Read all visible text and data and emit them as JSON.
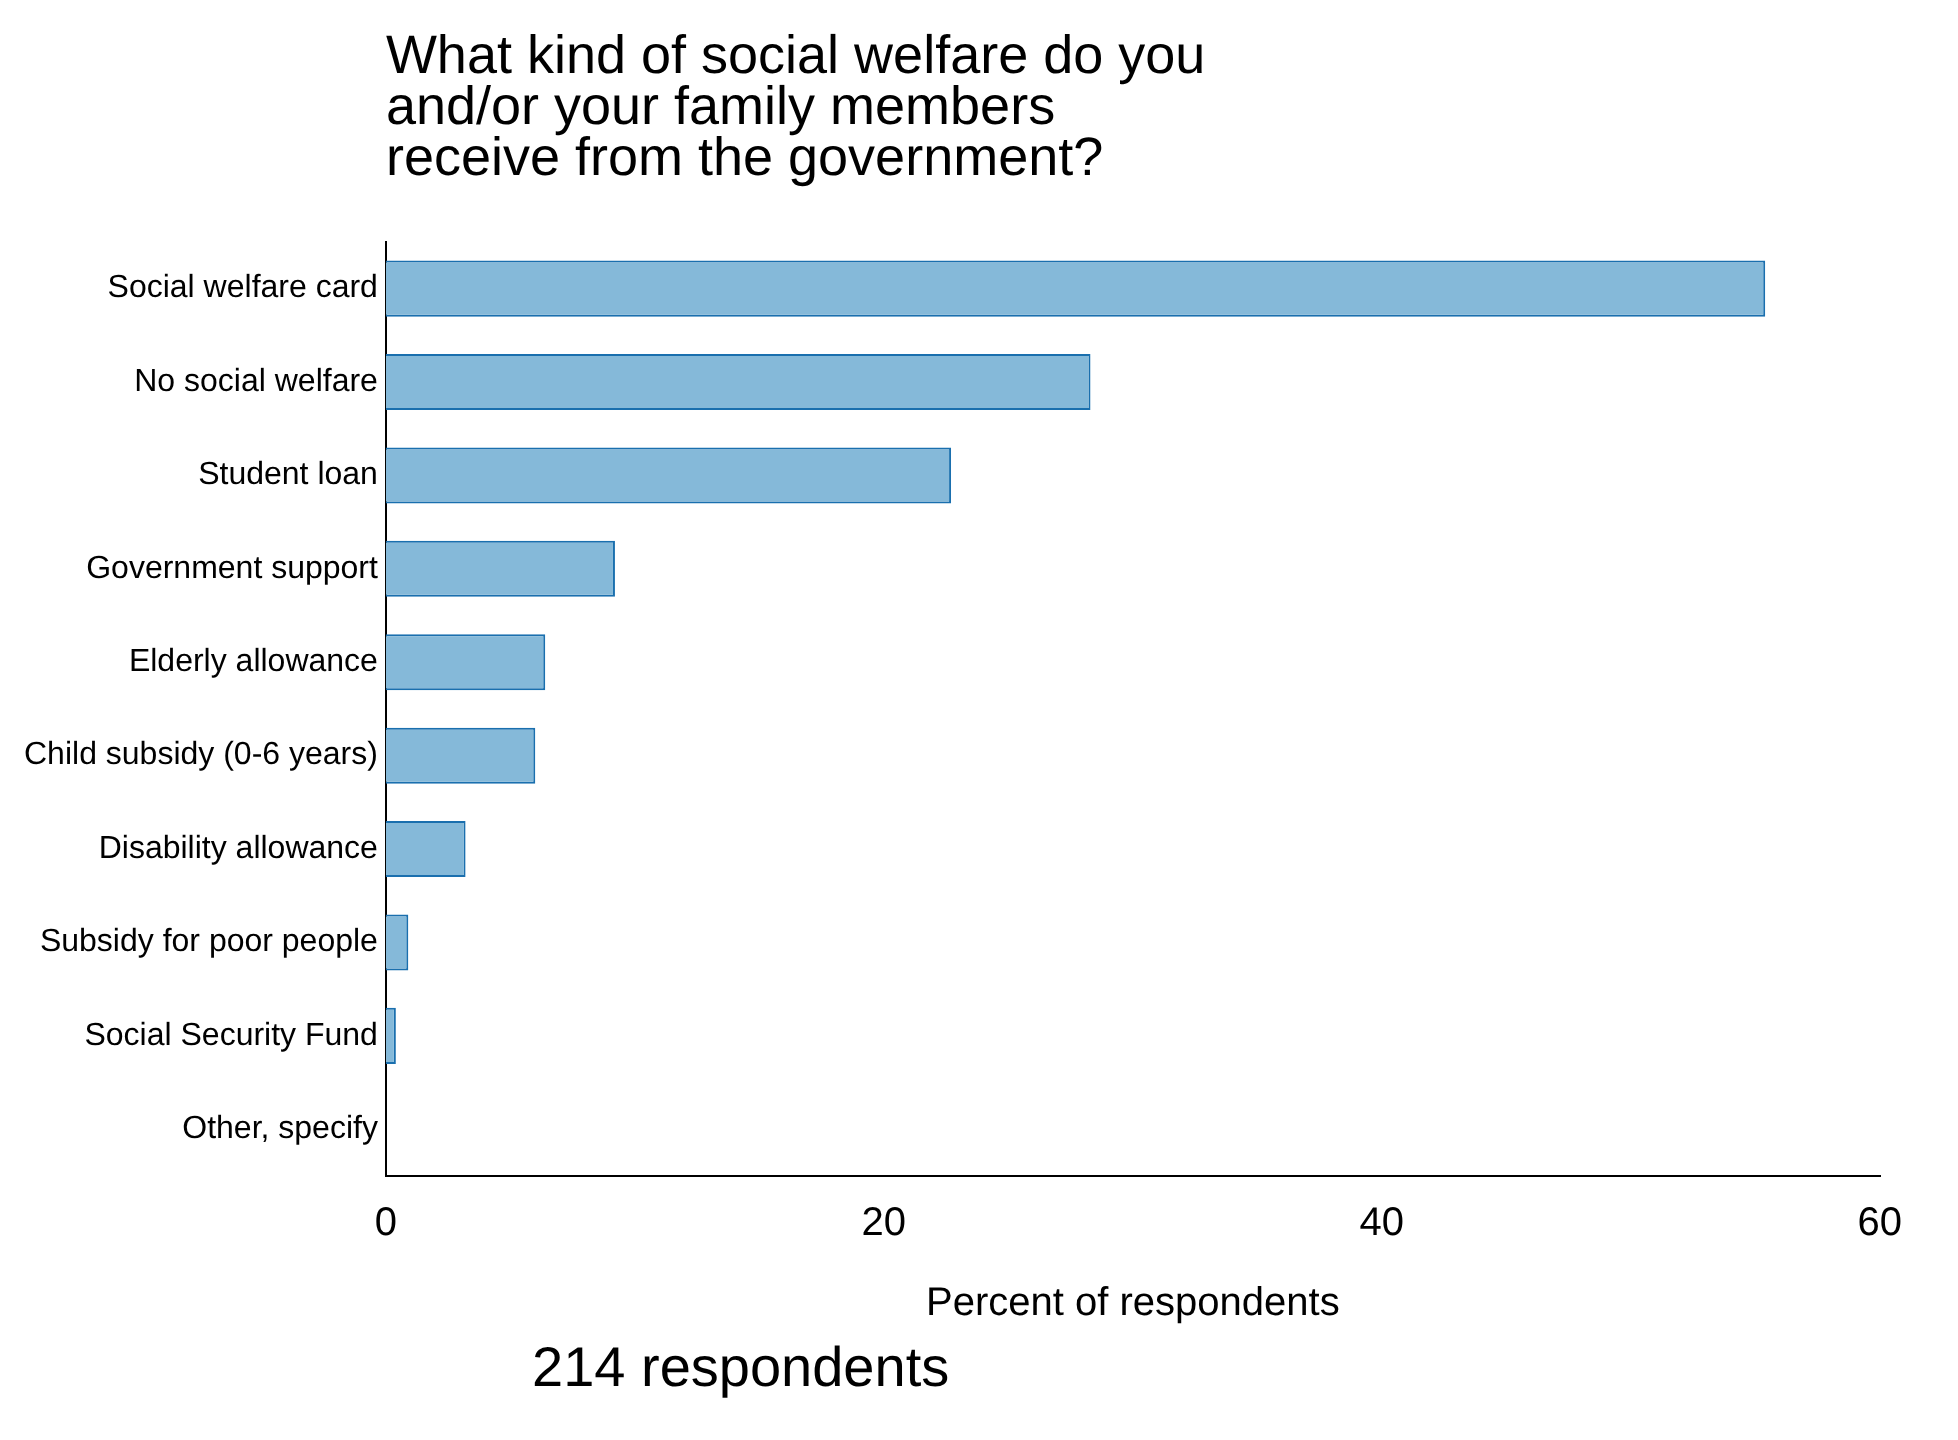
{
  "chart_data": {
    "type": "bar",
    "orientation": "horizontal",
    "title": "What kind of social welfare do you\nand/or your family members\nreceive from the government?",
    "xlabel": "Percent of respondents",
    "categories": [
      "Social welfare card",
      "No social welfare",
      "Student loan",
      "Government support",
      "Elderly allowance",
      "Child subsidy (0-6 years)",
      "Disability allowance",
      "Subsidy for poor people",
      "Social Security Fund",
      "Other, specify"
    ],
    "values": [
      55.4,
      28.3,
      22.7,
      9.2,
      6.4,
      6.0,
      3.2,
      0.9,
      0.4,
      0
    ],
    "color": "#85b9d9",
    "xlim": [
      0,
      60
    ],
    "xticks": [
      0,
      20,
      40,
      60
    ],
    "grid": false,
    "legend": false,
    "annotations": [
      "214 respondents"
    ]
  }
}
